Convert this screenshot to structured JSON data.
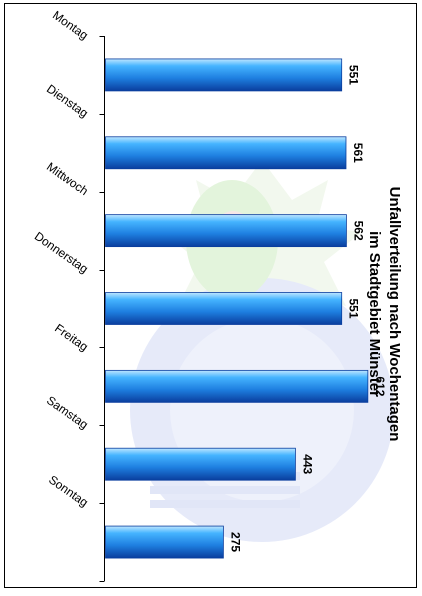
{
  "chart_data": {
    "type": "bar",
    "orientation": "horizontal",
    "title": "Unfallverteilung nach Wochentagen",
    "subtitle": "im Stadtgebiet Münster",
    "categories": [
      "Montag",
      "Dienstag",
      "Mittwoch",
      "Donnerstag",
      "Freitag",
      "Samstag",
      "Sonntag"
    ],
    "values": [
      551,
      561,
      562,
      551,
      612,
      443,
      275
    ],
    "data_labels": [
      "551",
      "561",
      "562",
      "551",
      "612",
      "443",
      "275"
    ],
    "value_axis_range": [
      0,
      680
    ],
    "grid": false,
    "legend": "none",
    "value_axis_labels": "none",
    "bar_color": "#1E90E8",
    "bar_color_dark": "#0A3E9E",
    "watermark": "police emblem (light green/blue star)"
  },
  "colors": {
    "axis": "#000000",
    "background": "#ffffff",
    "watermark_green": "#E3F4DC",
    "watermark_blue": "#DCE4F7"
  }
}
